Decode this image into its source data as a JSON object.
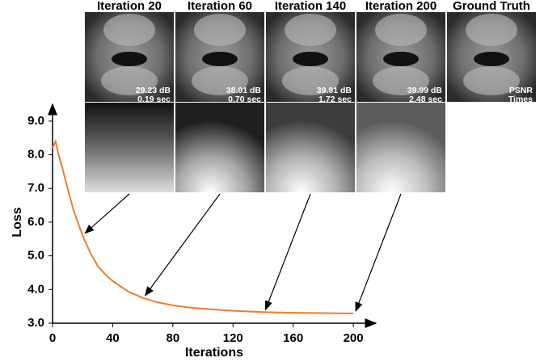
{
  "chart_data": {
    "type": "line",
    "xlabel": "Iterations",
    "ylabel": "Loss",
    "x": [
      0,
      2,
      4,
      6,
      8,
      10,
      14,
      18,
      20,
      25,
      30,
      35,
      40,
      45,
      50,
      55,
      60,
      70,
      80,
      90,
      100,
      120,
      140,
      160,
      180,
      200
    ],
    "values": [
      8.2,
      8.4,
      8.0,
      7.7,
      7.35,
      7.0,
      6.35,
      5.85,
      5.6,
      5.1,
      4.7,
      4.45,
      4.25,
      4.1,
      3.95,
      3.85,
      3.75,
      3.62,
      3.53,
      3.47,
      3.43,
      3.37,
      3.33,
      3.31,
      3.3,
      3.29
    ],
    "color": "#ed7d31",
    "xlim": [
      0,
      215
    ],
    "ylim": [
      3,
      9.5
    ],
    "xticks": [
      0,
      40,
      80,
      120,
      160,
      200
    ],
    "yticks": [
      {
        "value": 3,
        "label": "3.0"
      },
      {
        "value": 4,
        "label": "4.0"
      },
      {
        "value": 5,
        "label": "5.0"
      },
      {
        "value": 6,
        "label": "6.0"
      },
      {
        "value": 7,
        "label": "7.0"
      },
      {
        "value": 8,
        "label": "8.0"
      },
      {
        "value": 9,
        "label": "9.0"
      }
    ]
  },
  "images": {
    "panels": [
      {
        "title": "Iteration 20",
        "iteration": 20,
        "psnr": "29.23 dB",
        "time": "0.19 sec"
      },
      {
        "title": "Iteration 60",
        "iteration": 60,
        "psnr": "38.01 dB",
        "time": "0.70 sec"
      },
      {
        "title": "Iteration 140",
        "iteration": 140,
        "psnr": "39.91 dB",
        "time": "1.72 sec"
      },
      {
        "title": "Iteration 200",
        "iteration": 200,
        "psnr": "39.99 dB",
        "time": "2.48 sec"
      }
    ],
    "ground_truth": {
      "title": "Ground Truth",
      "psnr": "PSNR",
      "time": "Times"
    }
  }
}
